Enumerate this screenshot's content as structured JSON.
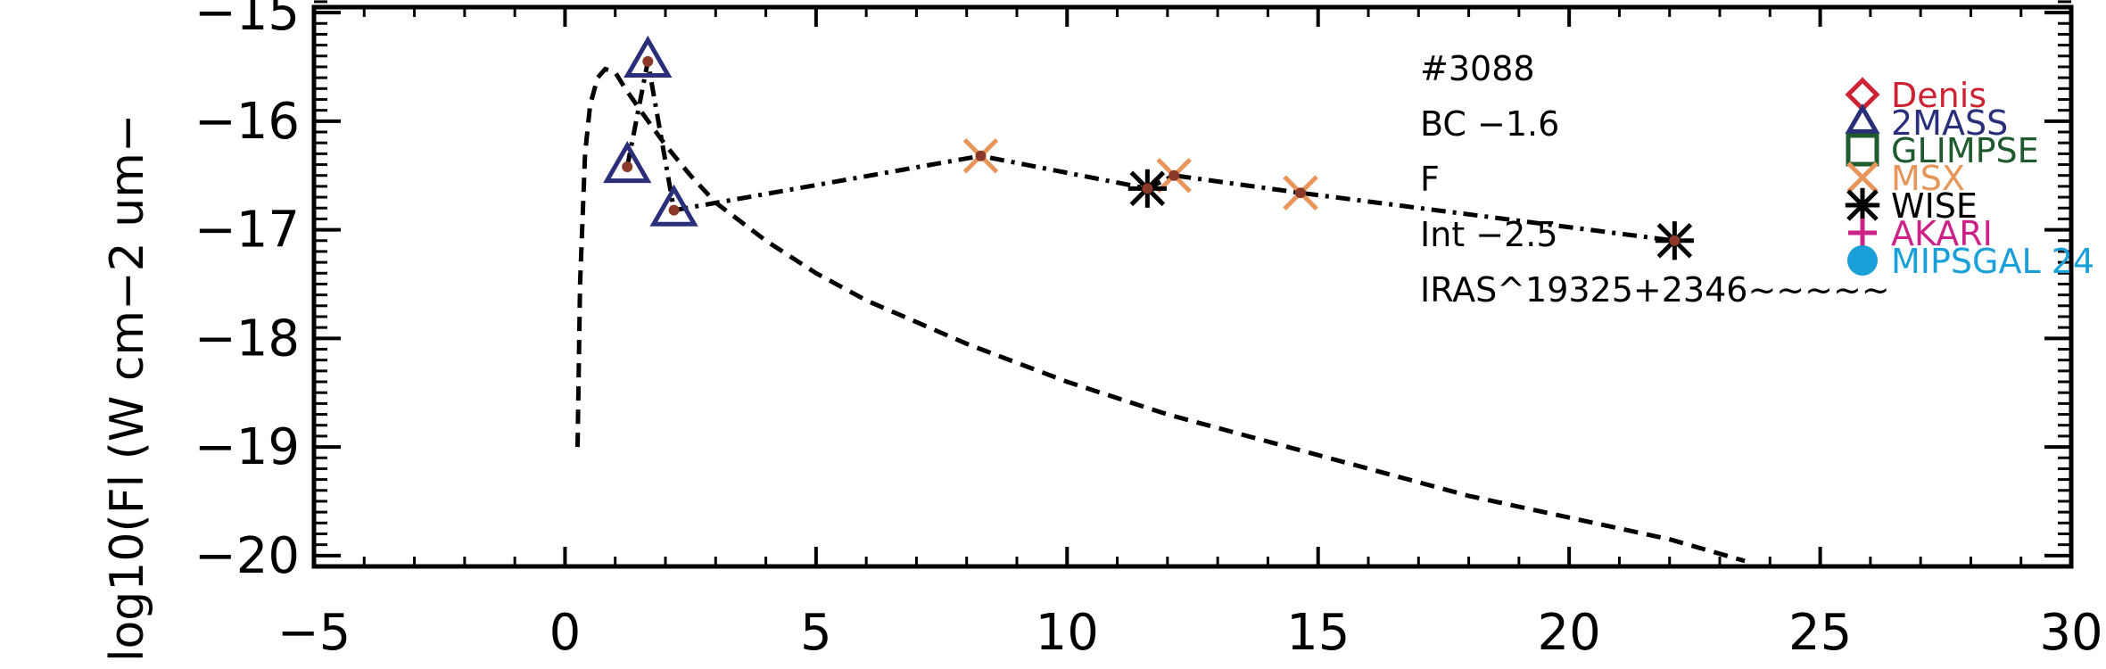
{
  "chart_data": {
    "type": "scatter",
    "title": "",
    "xlabel": "",
    "ylabel": "log10(Fl (W cm−2 um−",
    "xlim": [
      -5,
      30
    ],
    "ylim": [
      -20.1,
      -14.95
    ],
    "x_ticks": [
      -5,
      0,
      5,
      10,
      15,
      20,
      25,
      30
    ],
    "x_tick_labels": [
      "−5",
      "0",
      "5",
      "10",
      "15",
      "20",
      "25",
      "30"
    ],
    "y_ticks": [
      -15,
      -16,
      -17,
      -18,
      -19,
      -20
    ],
    "y_tick_labels": [
      "−15",
      "−16",
      "−17",
      "−18",
      "−19",
      "−20"
    ],
    "grid": false,
    "legend_position": "right",
    "annotations": [
      "#3088",
      "BC −1.6",
      "F",
      "Int −2.5",
      "IRAS^19325+2346~~~~~"
    ],
    "legend": [
      {
        "label": "Denis",
        "color": "#cc2233",
        "marker": "diamond"
      },
      {
        "label": "2MASS",
        "color": "#2a2f7a",
        "marker": "triangle"
      },
      {
        "label": "GLIMPSE",
        "color": "#1e5a2e",
        "marker": "square"
      },
      {
        "label": "MSX",
        "color": "#e8955a",
        "marker": "x"
      },
      {
        "label": "WISE",
        "color": "#000000",
        "marker": "asterisk"
      },
      {
        "label": "AKARI",
        "color": "#cc2288",
        "marker": "plus"
      },
      {
        "label": "MIPSGAL 24",
        "color": "#1aa0d8",
        "marker": "circle"
      }
    ],
    "series": [
      {
        "name": "2MASS",
        "color": "#2a2f7a",
        "marker": "triangle",
        "x": [
          1.24,
          1.65,
          2.17
        ],
        "y": [
          -16.42,
          -15.45,
          -16.82
        ]
      },
      {
        "name": "MSX",
        "color": "#e8955a",
        "marker": "x",
        "x": [
          8.28,
          12.13,
          14.65
        ],
        "y": [
          -16.32,
          -16.5,
          -16.66
        ]
      },
      {
        "name": "WISE",
        "color": "#000000",
        "marker": "asterisk",
        "x": [
          11.6,
          22.1
        ],
        "y": [
          -16.62,
          -17.1
        ]
      }
    ],
    "lines": [
      {
        "style": "dashdot",
        "color": "#000000",
        "x": [
          2.17,
          8.28,
          11.6,
          12.13,
          14.65,
          22.1
        ],
        "y": [
          -16.82,
          -16.32,
          -16.62,
          -16.5,
          -16.66,
          -17.1
        ]
      },
      {
        "style": "dashdot",
        "color": "#000000",
        "x": [
          1.24,
          1.65,
          2.17
        ],
        "y": [
          -16.42,
          -15.45,
          -16.82
        ]
      },
      {
        "style": "dashed",
        "color": "#000000",
        "x": [
          0.25,
          0.3,
          0.4,
          0.5,
          0.65,
          0.8,
          1.0,
          1.2,
          1.5,
          2.0,
          2.5,
          3.0,
          4.0,
          5.0,
          6.0,
          8.0,
          10.0,
          12.0,
          14.0,
          16.0,
          18.0,
          20.0,
          22.0,
          23.5
        ],
        "y": [
          -19.0,
          -17.5,
          -16.3,
          -15.85,
          -15.6,
          -15.52,
          -15.55,
          -15.7,
          -15.9,
          -16.22,
          -16.5,
          -16.75,
          -17.1,
          -17.4,
          -17.65,
          -18.05,
          -18.4,
          -18.7,
          -18.95,
          -19.2,
          -19.45,
          -19.65,
          -19.85,
          -20.05
        ]
      }
    ],
    "point_fill_color": "#8b3a2a"
  }
}
